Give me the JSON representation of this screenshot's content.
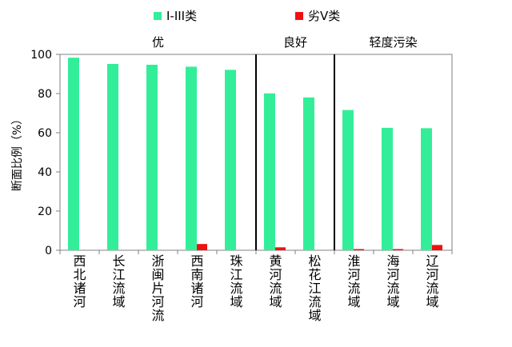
{
  "chart_data": {
    "type": "bar",
    "ylabel": "断面比例（%）",
    "ylim": [
      0,
      100
    ],
    "yticks": [
      0,
      20,
      40,
      60,
      80,
      100
    ],
    "grid": false,
    "legend_position": "top",
    "categories": [
      "西北诸河",
      "长江流域",
      "浙闽片河流",
      "西南诸河",
      "珠江流域",
      "黄河流域",
      "松花江流域",
      "淮河流域",
      "海河流域",
      "辽河流域"
    ],
    "series": [
      {
        "name": "I-III类",
        "color": "#33ee99",
        "values": [
          98.3,
          95.1,
          94.7,
          93.7,
          92.1,
          80.1,
          78.0,
          71.6,
          62.5,
          62.3
        ]
      },
      {
        "name": "劣V类",
        "color": "#ee1111",
        "values": [
          0,
          0,
          0,
          3.2,
          0,
          1.5,
          0,
          0.6,
          0.6,
          2.7
        ]
      }
    ],
    "groups": [
      {
        "label": "优",
        "from": 0,
        "to": 4
      },
      {
        "label": "良好",
        "from": 5,
        "to": 6
      },
      {
        "label": "轻度污染",
        "from": 7,
        "to": 9
      }
    ],
    "separators_after": [
      4,
      6
    ]
  }
}
